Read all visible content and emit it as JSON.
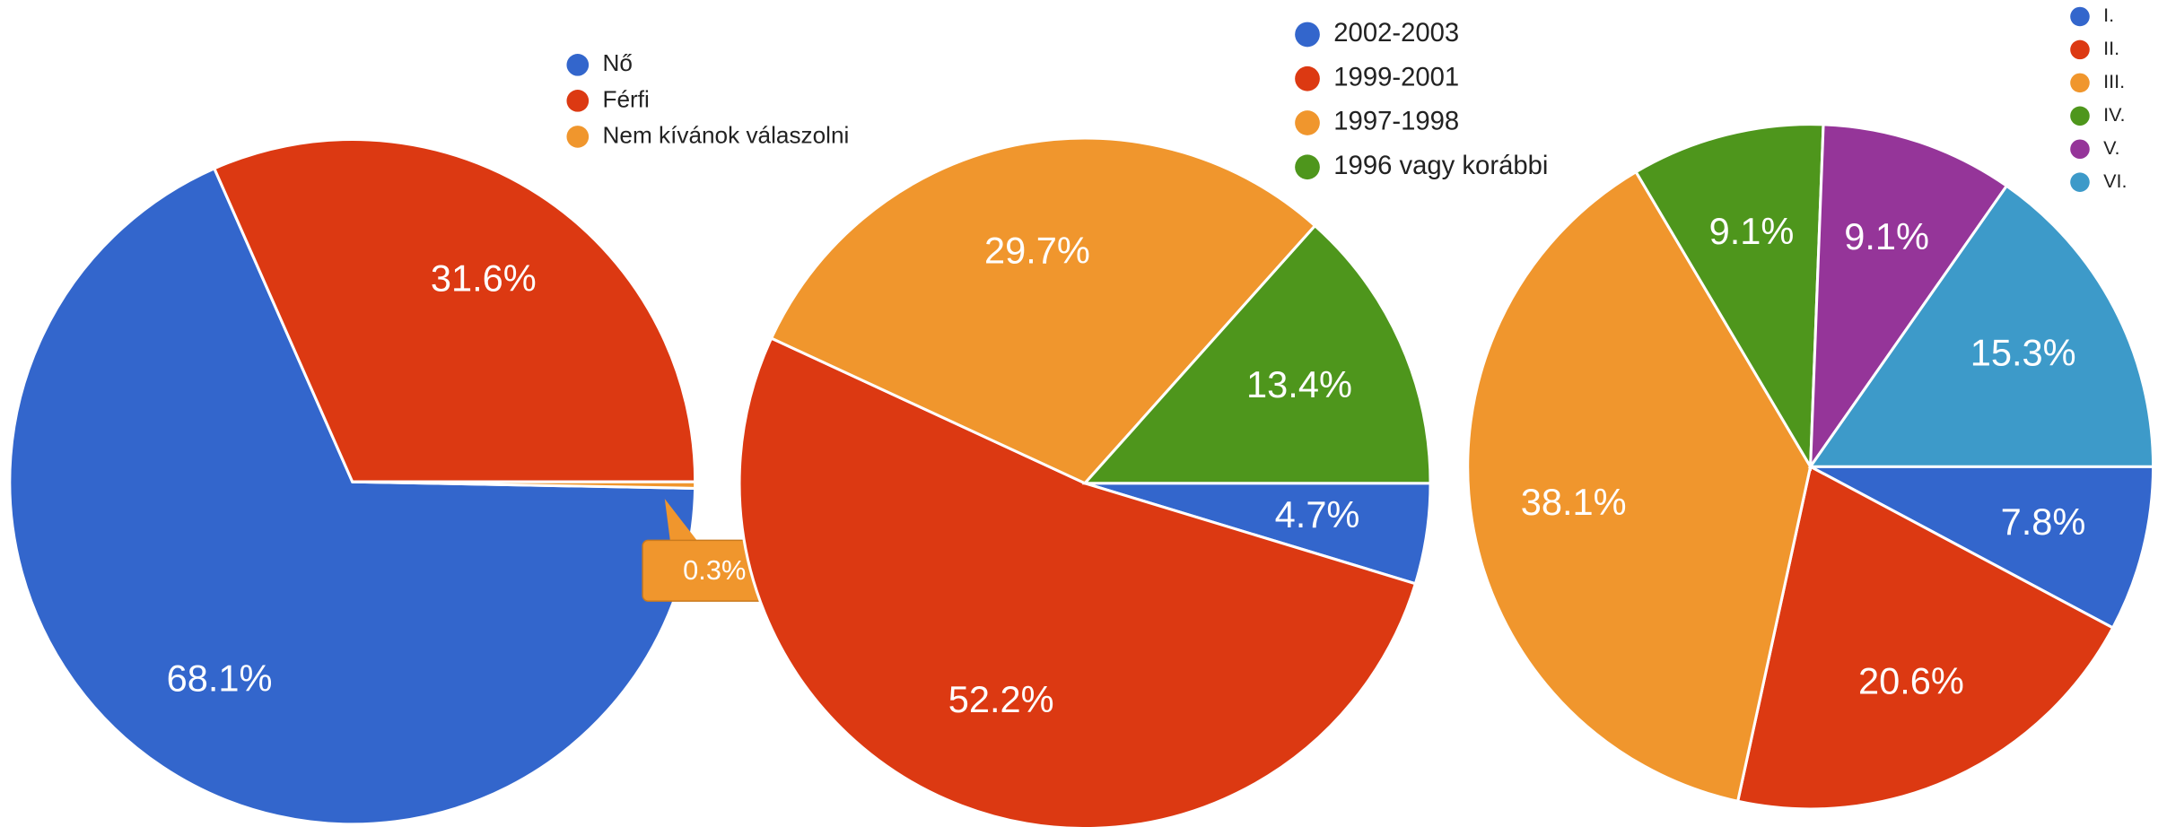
{
  "chart_data": [
    {
      "type": "pie",
      "categories": [
        "Nő",
        "Férfi",
        "Nem kívánok válaszolni"
      ],
      "values": [
        68.1,
        31.6,
        0.3
      ],
      "value_labels": [
        "68.1%",
        "31.6%",
        "0.3%"
      ],
      "colors": [
        "#3366cc",
        "#dc3912",
        "#f0962d"
      ]
    },
    {
      "type": "pie",
      "categories": [
        "2002-2003",
        "1999-2001",
        "1997-1998",
        "1996 vagy korábbi"
      ],
      "values": [
        4.7,
        52.2,
        29.7,
        13.4
      ],
      "value_labels": [
        "4.7%",
        "52.2%",
        "29.7%",
        "13.4%"
      ],
      "colors": [
        "#3366cc",
        "#dc3912",
        "#f0962d",
        "#4e961c"
      ]
    },
    {
      "type": "pie",
      "categories": [
        "I.",
        "II.",
        "III.",
        "IV.",
        "V.",
        "VI."
      ],
      "values": [
        7.8,
        20.6,
        38.1,
        9.1,
        9.1,
        15.3
      ],
      "value_labels": [
        "7.8%",
        "20.6%",
        "38.1%",
        "9.1%",
        "9.1%",
        "15.3%"
      ],
      "colors": [
        "#3366cc",
        "#dc3912",
        "#f0962d",
        "#4e961c",
        "#953599",
        "#3d9ac9"
      ]
    }
  ]
}
